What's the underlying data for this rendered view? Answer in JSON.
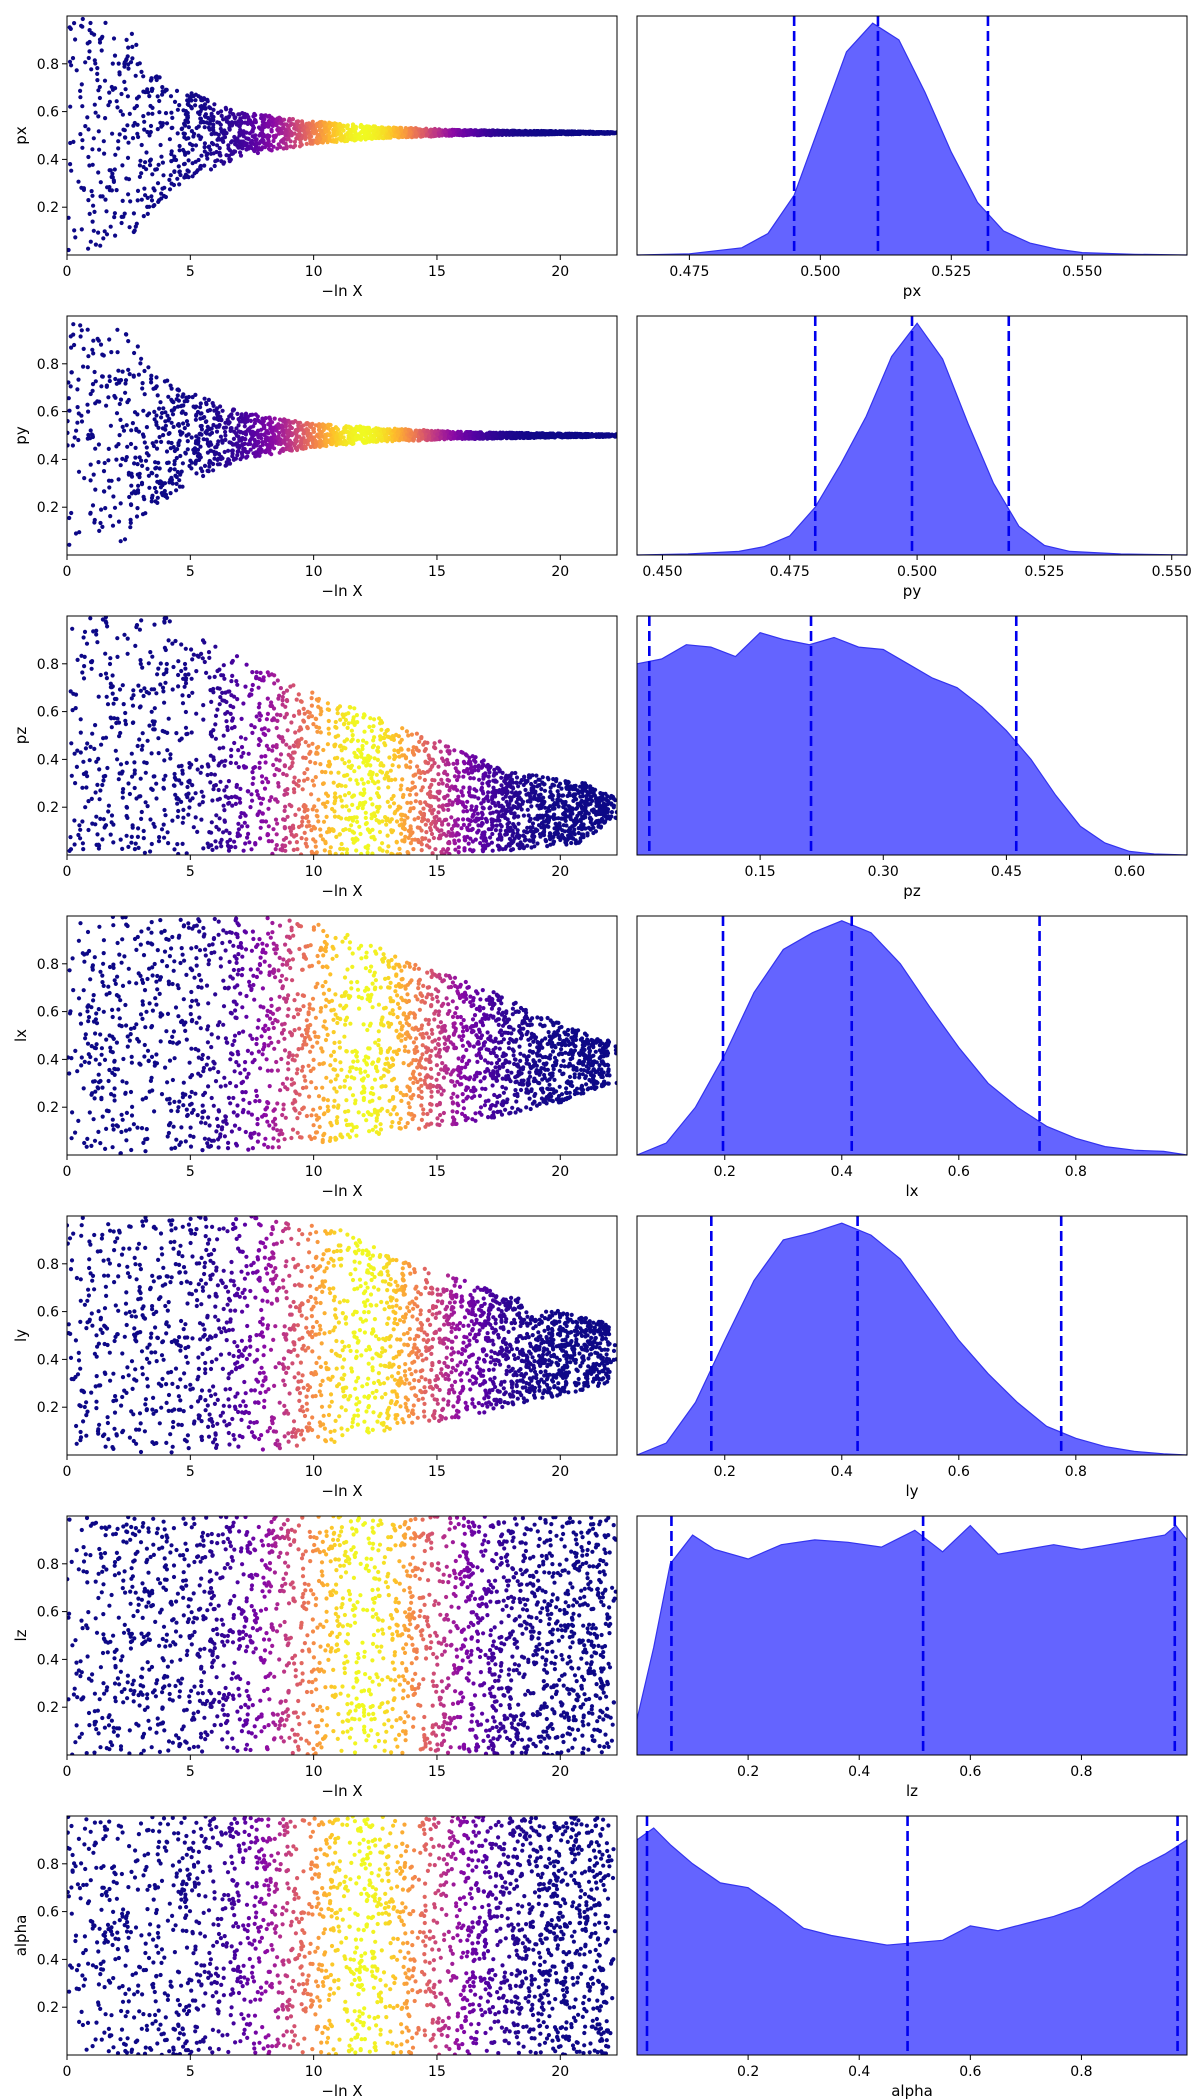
{
  "colors": {
    "kde_fill": "#6464ff",
    "kde_line": "#3333ee",
    "quantile_line": "#0000ee",
    "colormap": "plasma"
  },
  "chart_data": [
    {
      "type": "scatter",
      "param": "px",
      "xlabel": "−ln X",
      "ylabel": "px",
      "xlim": [
        0,
        22.3
      ],
      "ylim": [
        0,
        1
      ],
      "xticks": [
        0,
        5,
        10,
        15,
        20
      ],
      "xtick_labels": [
        "0",
        "5",
        "10",
        "15",
        "20"
      ],
      "yticks": [
        0.2,
        0.4,
        0.6,
        0.8
      ],
      "ytick_labels": [
        "0.2",
        "0.4",
        "0.6",
        "0.8"
      ],
      "envelope": [
        [
          0,
          0.0,
          1.0
        ],
        [
          1.5,
          0.02,
          0.98
        ],
        [
          2.5,
          0.06,
          0.95
        ],
        [
          3.5,
          0.2,
          0.78
        ],
        [
          5,
          0.32,
          0.68
        ],
        [
          7,
          0.41,
          0.6
        ],
        [
          10,
          0.465,
          0.56
        ],
        [
          13,
          0.49,
          0.535
        ],
        [
          16,
          0.5,
          0.523
        ],
        [
          20,
          0.505,
          0.518
        ],
        [
          22,
          0.508,
          0.514
        ]
      ],
      "color_peak": 12,
      "color_width": 2.3
    },
    {
      "type": "area",
      "param": "px",
      "xlabel": "px",
      "xlim": [
        0.465,
        0.57
      ],
      "xticks": [
        0.475,
        0.5,
        0.525,
        0.55
      ],
      "xtick_labels": [
        "0.475",
        "0.500",
        "0.525",
        "0.550"
      ],
      "density": {
        "x": [
          0.465,
          0.475,
          0.485,
          0.49,
          0.495,
          0.5,
          0.505,
          0.51,
          0.515,
          0.52,
          0.525,
          0.53,
          0.535,
          0.54,
          0.545,
          0.55,
          0.56,
          0.57
        ],
        "y": [
          0.0,
          0.005,
          0.03,
          0.09,
          0.25,
          0.55,
          0.85,
          0.97,
          0.9,
          0.68,
          0.43,
          0.22,
          0.1,
          0.05,
          0.025,
          0.01,
          0.003,
          0.0
        ]
      },
      "quantiles": [
        0.495,
        0.511,
        0.532
      ]
    },
    {
      "type": "scatter",
      "param": "py",
      "xlabel": "−ln X",
      "ylabel": "py",
      "xlim": [
        0,
        22.3
      ],
      "ylim": [
        0,
        1
      ],
      "xticks": [
        0,
        5,
        10,
        15,
        20
      ],
      "xtick_labels": [
        "0",
        "5",
        "10",
        "15",
        "20"
      ],
      "yticks": [
        0.2,
        0.4,
        0.6,
        0.8
      ],
      "ytick_labels": [
        "0.2",
        "0.4",
        "0.6",
        "0.8"
      ],
      "envelope": [
        [
          0,
          0.0,
          1.0
        ],
        [
          1.5,
          0.02,
          0.98
        ],
        [
          2.5,
          0.06,
          0.95
        ],
        [
          3.5,
          0.2,
          0.76
        ],
        [
          5,
          0.3,
          0.68
        ],
        [
          7,
          0.4,
          0.6
        ],
        [
          10,
          0.45,
          0.55
        ],
        [
          13,
          0.475,
          0.53
        ],
        [
          16,
          0.485,
          0.515
        ],
        [
          20,
          0.492,
          0.508
        ],
        [
          22,
          0.495,
          0.505
        ]
      ],
      "color_peak": 12,
      "color_width": 2.3
    },
    {
      "type": "area",
      "param": "py",
      "xlabel": "py",
      "xlim": [
        0.445,
        0.553
      ],
      "xticks": [
        0.45,
        0.475,
        0.5,
        0.525,
        0.55
      ],
      "xtick_labels": [
        "0.450",
        "0.475",
        "0.500",
        "0.525",
        "0.550"
      ],
      "density": {
        "x": [
          0.445,
          0.455,
          0.465,
          0.47,
          0.475,
          0.48,
          0.485,
          0.49,
          0.495,
          0.5,
          0.505,
          0.51,
          0.515,
          0.52,
          0.525,
          0.53,
          0.54,
          0.553
        ],
        "y": [
          0.0,
          0.004,
          0.015,
          0.035,
          0.08,
          0.2,
          0.38,
          0.58,
          0.83,
          0.97,
          0.82,
          0.55,
          0.3,
          0.12,
          0.04,
          0.015,
          0.004,
          0.0
        ]
      },
      "quantiles": [
        0.48,
        0.499,
        0.518
      ]
    },
    {
      "type": "scatter",
      "param": "pz",
      "xlabel": "−ln X",
      "ylabel": "pz",
      "xlim": [
        0,
        22.3
      ],
      "ylim": [
        0,
        1
      ],
      "xticks": [
        0,
        5,
        10,
        15,
        20
      ],
      "xtick_labels": [
        "0",
        "5",
        "10",
        "15",
        "20"
      ],
      "yticks": [
        0.2,
        0.4,
        0.6,
        0.8
      ],
      "ytick_labels": [
        "0.2",
        "0.4",
        "0.6",
        "0.8"
      ],
      "envelope": [
        [
          0,
          0.0,
          1.0
        ],
        [
          4,
          0.0,
          1.0
        ],
        [
          6,
          0.0,
          0.88
        ],
        [
          9,
          0.0,
          0.72
        ],
        [
          12,
          0.0,
          0.6
        ],
        [
          15,
          0.0,
          0.48
        ],
        [
          18,
          0.02,
          0.35
        ],
        [
          21,
          0.05,
          0.3
        ],
        [
          22,
          0.15,
          0.25
        ]
      ],
      "color_peak": 12,
      "color_width": 2.5
    },
    {
      "type": "area",
      "param": "pz",
      "xlabel": "pz",
      "xlim": [
        0.0,
        0.67
      ],
      "xticks": [
        0.15,
        0.3,
        0.45,
        0.6
      ],
      "xtick_labels": [
        "0.15",
        "0.30",
        "0.45",
        "0.60"
      ],
      "density": {
        "x": [
          0.0,
          0.03,
          0.06,
          0.09,
          0.12,
          0.15,
          0.18,
          0.21,
          0.24,
          0.27,
          0.3,
          0.33,
          0.36,
          0.39,
          0.42,
          0.45,
          0.48,
          0.51,
          0.54,
          0.57,
          0.6,
          0.63,
          0.67
        ],
        "y": [
          0.8,
          0.82,
          0.88,
          0.87,
          0.83,
          0.93,
          0.9,
          0.88,
          0.91,
          0.87,
          0.86,
          0.8,
          0.74,
          0.7,
          0.62,
          0.52,
          0.4,
          0.25,
          0.12,
          0.05,
          0.015,
          0.004,
          0.0
        ]
      },
      "quantiles": [
        0.015,
        0.212,
        0.462
      ]
    },
    {
      "type": "scatter",
      "param": "lx",
      "xlabel": "−ln X",
      "ylabel": "lx",
      "xlim": [
        0,
        22.3
      ],
      "ylim": [
        0,
        1
      ],
      "xticks": [
        0,
        5,
        10,
        15,
        20
      ],
      "xtick_labels": [
        "0",
        "5",
        "10",
        "15",
        "20"
      ],
      "yticks": [
        0.2,
        0.4,
        0.6,
        0.8
      ],
      "ytick_labels": [
        "0.2",
        "0.4",
        "0.6",
        "0.8"
      ],
      "envelope": [
        [
          0,
          0.0,
          1.0
        ],
        [
          8,
          0.02,
          1.0
        ],
        [
          11,
          0.05,
          0.95
        ],
        [
          14,
          0.1,
          0.8
        ],
        [
          17,
          0.15,
          0.7
        ],
        [
          20,
          0.22,
          0.55
        ],
        [
          22,
          0.3,
          0.48
        ]
      ],
      "color_peak": 12,
      "color_width": 2.5
    },
    {
      "type": "area",
      "param": "lx",
      "xlabel": "lx",
      "xlim": [
        0.05,
        0.99
      ],
      "xticks": [
        0.2,
        0.4,
        0.6,
        0.8
      ],
      "xtick_labels": [
        "0.2",
        "0.4",
        "0.6",
        "0.8"
      ],
      "density": {
        "x": [
          0.05,
          0.1,
          0.15,
          0.2,
          0.25,
          0.3,
          0.35,
          0.4,
          0.45,
          0.5,
          0.55,
          0.6,
          0.65,
          0.7,
          0.75,
          0.8,
          0.85,
          0.9,
          0.95,
          0.99
        ],
        "y": [
          0.0,
          0.05,
          0.2,
          0.42,
          0.68,
          0.86,
          0.93,
          0.98,
          0.93,
          0.8,
          0.62,
          0.45,
          0.3,
          0.2,
          0.12,
          0.07,
          0.035,
          0.02,
          0.015,
          0.0
        ]
      },
      "quantiles": [
        0.197,
        0.417,
        0.738
      ]
    },
    {
      "type": "scatter",
      "param": "ly",
      "xlabel": "−ln X",
      "ylabel": "ly",
      "xlim": [
        0,
        22.3
      ],
      "ylim": [
        0,
        1
      ],
      "xticks": [
        0,
        5,
        10,
        15,
        20
      ],
      "xtick_labels": [
        "0",
        "5",
        "10",
        "15",
        "20"
      ],
      "yticks": [
        0.2,
        0.4,
        0.6,
        0.8
      ],
      "ytick_labels": [
        "0.2",
        "0.4",
        "0.6",
        "0.8"
      ],
      "envelope": [
        [
          0,
          0.0,
          1.0
        ],
        [
          8,
          0.02,
          1.0
        ],
        [
          11,
          0.05,
          0.95
        ],
        [
          14,
          0.12,
          0.8
        ],
        [
          17,
          0.18,
          0.7
        ],
        [
          20,
          0.25,
          0.6
        ],
        [
          22,
          0.3,
          0.55
        ]
      ],
      "color_peak": 12,
      "color_width": 2.5
    },
    {
      "type": "area",
      "param": "ly",
      "xlabel": "ly",
      "xlim": [
        0.05,
        0.99
      ],
      "xticks": [
        0.2,
        0.4,
        0.6,
        0.8
      ],
      "xtick_labels": [
        "0.2",
        "0.4",
        "0.6",
        "0.8"
      ],
      "density": {
        "x": [
          0.05,
          0.1,
          0.15,
          0.2,
          0.25,
          0.3,
          0.35,
          0.4,
          0.45,
          0.5,
          0.55,
          0.6,
          0.65,
          0.7,
          0.75,
          0.8,
          0.85,
          0.9,
          0.95,
          0.99
        ],
        "y": [
          0.0,
          0.05,
          0.22,
          0.48,
          0.73,
          0.9,
          0.93,
          0.97,
          0.92,
          0.82,
          0.65,
          0.48,
          0.34,
          0.22,
          0.12,
          0.07,
          0.035,
          0.015,
          0.005,
          0.0
        ]
      },
      "quantiles": [
        0.177,
        0.427,
        0.775
      ]
    },
    {
      "type": "scatter",
      "param": "lz",
      "xlabel": "−ln X",
      "ylabel": "lz",
      "xlim": [
        0,
        22.3
      ],
      "ylim": [
        0,
        1
      ],
      "xticks": [
        0,
        5,
        10,
        15,
        20
      ],
      "xtick_labels": [
        "0",
        "5",
        "10",
        "15",
        "20"
      ],
      "yticks": [
        0.2,
        0.4,
        0.6,
        0.8
      ],
      "ytick_labels": [
        "0.2",
        "0.4",
        "0.6",
        "0.8"
      ],
      "envelope": [
        [
          0,
          0.0,
          1.0
        ],
        [
          22,
          0.0,
          1.0
        ]
      ],
      "color_peak": 12,
      "color_width": 2.5
    },
    {
      "type": "area",
      "param": "lz",
      "xlabel": "lz",
      "xlim": [
        0.0,
        0.99
      ],
      "xticks": [
        0.2,
        0.4,
        0.6,
        0.8
      ],
      "xtick_labels": [
        "0.2",
        "0.4",
        "0.6",
        "0.8"
      ],
      "density": {
        "x": [
          0.0,
          0.03,
          0.06,
          0.1,
          0.14,
          0.2,
          0.26,
          0.32,
          0.38,
          0.44,
          0.5,
          0.55,
          0.6,
          0.65,
          0.7,
          0.75,
          0.8,
          0.85,
          0.9,
          0.95,
          0.97,
          0.99
        ],
        "y": [
          0.15,
          0.45,
          0.8,
          0.92,
          0.86,
          0.82,
          0.88,
          0.9,
          0.89,
          0.87,
          0.94,
          0.85,
          0.96,
          0.84,
          0.86,
          0.88,
          0.86,
          0.88,
          0.9,
          0.92,
          0.96,
          0.9
        ]
      },
      "quantiles": [
        0.062,
        0.515,
        0.968
      ]
    },
    {
      "type": "scatter",
      "param": "alpha",
      "xlabel": "−ln X",
      "ylabel": "alpha",
      "xlim": [
        0,
        22.3
      ],
      "ylim": [
        0,
        1
      ],
      "xticks": [
        0,
        5,
        10,
        15,
        20
      ],
      "xtick_labels": [
        "0",
        "5",
        "10",
        "15",
        "20"
      ],
      "yticks": [
        0.2,
        0.4,
        0.6,
        0.8
      ],
      "ytick_labels": [
        "0.2",
        "0.4",
        "0.6",
        "0.8"
      ],
      "envelope": [
        [
          0,
          0.0,
          1.0
        ],
        [
          22,
          0.0,
          1.0
        ]
      ],
      "color_peak": 12,
      "color_width": 2.5
    },
    {
      "type": "area",
      "param": "alpha",
      "xlabel": "alpha",
      "xlim": [
        0.0,
        0.99
      ],
      "xticks": [
        0.2,
        0.4,
        0.6,
        0.8
      ],
      "xtick_labels": [
        "0.2",
        "0.4",
        "0.6",
        "0.8"
      ],
      "density": {
        "x": [
          0.0,
          0.03,
          0.06,
          0.1,
          0.15,
          0.2,
          0.25,
          0.3,
          0.35,
          0.4,
          0.45,
          0.5,
          0.55,
          0.6,
          0.65,
          0.7,
          0.75,
          0.8,
          0.85,
          0.9,
          0.95,
          0.99
        ],
        "y": [
          0.9,
          0.95,
          0.88,
          0.8,
          0.72,
          0.7,
          0.62,
          0.53,
          0.5,
          0.48,
          0.46,
          0.47,
          0.48,
          0.54,
          0.52,
          0.55,
          0.58,
          0.62,
          0.7,
          0.78,
          0.84,
          0.9
        ]
      },
      "quantiles": [
        0.018,
        0.487,
        0.973
      ]
    }
  ]
}
